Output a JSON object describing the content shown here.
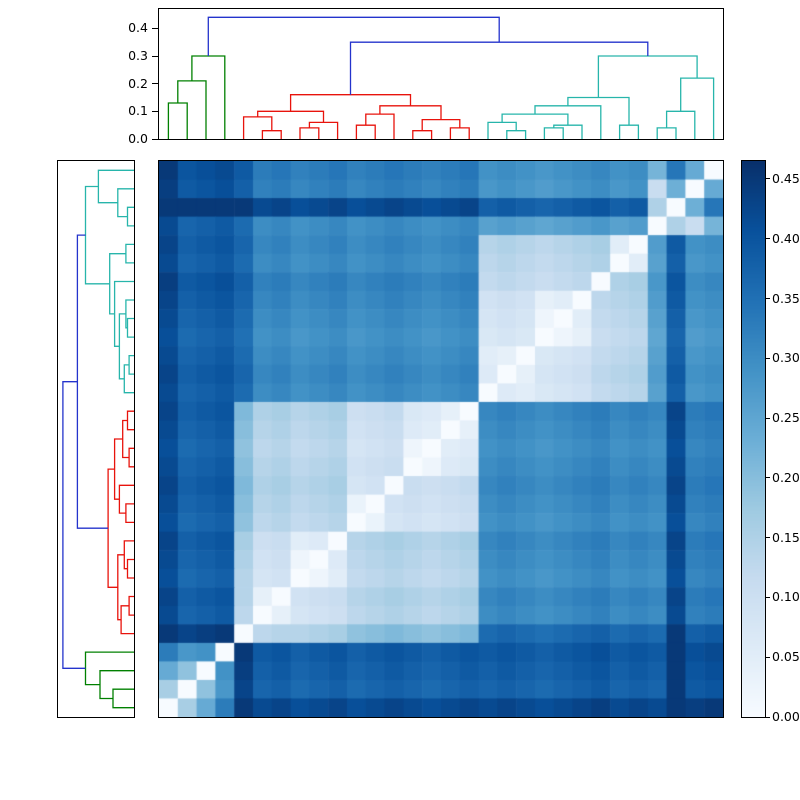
{
  "colors": {
    "dendrogram_blue": "#2433cc",
    "dendrogram_green": "#008000",
    "dendrogram_red": "#e8130c",
    "dendrogram_teal": "#27b5ab",
    "frame": "#000000",
    "background": "#ffffff"
  },
  "chart_data": {
    "type": "heatmap",
    "n_rows": 30,
    "n_cols": 30,
    "vmin": 0.0,
    "vmax": 0.465,
    "colormap": "Blues",
    "colormap_stops": [
      [
        0.0,
        247,
        251,
        255
      ],
      [
        0.125,
        222,
        235,
        247
      ],
      [
        0.25,
        198,
        219,
        239
      ],
      [
        0.375,
        158,
        202,
        225
      ],
      [
        0.5,
        107,
        174,
        214
      ],
      [
        0.625,
        66,
        146,
        198
      ],
      [
        0.75,
        33,
        113,
        181
      ],
      [
        0.875,
        8,
        81,
        156
      ],
      [
        1.0,
        8,
        48,
        107
      ]
    ],
    "matrix": [
      [
        0.45,
        0.4,
        0.41,
        0.42,
        0.39,
        0.33,
        0.34,
        0.32,
        0.33,
        0.34,
        0.32,
        0.33,
        0.34,
        0.33,
        0.32,
        0.33,
        0.34,
        0.29,
        0.3,
        0.29,
        0.28,
        0.29,
        0.3,
        0.31,
        0.29,
        0.3,
        0.22,
        0.34,
        0.24,
        0.0
      ],
      [
        0.44,
        0.39,
        0.4,
        0.41,
        0.38,
        0.32,
        0.33,
        0.31,
        0.32,
        0.33,
        0.31,
        0.32,
        0.33,
        0.32,
        0.31,
        0.32,
        0.33,
        0.28,
        0.29,
        0.28,
        0.27,
        0.28,
        0.29,
        0.3,
        0.28,
        0.29,
        0.11,
        0.23,
        0.0,
        0.24
      ],
      [
        0.45,
        0.45,
        0.45,
        0.45,
        0.45,
        0.42,
        0.43,
        0.41,
        0.42,
        0.43,
        0.41,
        0.42,
        0.43,
        0.42,
        0.41,
        0.42,
        0.43,
        0.38,
        0.39,
        0.38,
        0.37,
        0.38,
        0.39,
        0.4,
        0.38,
        0.39,
        0.15,
        0.0,
        0.23,
        0.34
      ],
      [
        0.42,
        0.37,
        0.38,
        0.39,
        0.36,
        0.3,
        0.31,
        0.29,
        0.3,
        0.31,
        0.29,
        0.3,
        0.31,
        0.3,
        0.29,
        0.3,
        0.31,
        0.26,
        0.27,
        0.26,
        0.25,
        0.26,
        0.27,
        0.28,
        0.26,
        0.27,
        0.0,
        0.15,
        0.11,
        0.22
      ],
      [
        0.43,
        0.38,
        0.39,
        0.4,
        0.37,
        0.31,
        0.32,
        0.3,
        0.31,
        0.32,
        0.3,
        0.31,
        0.32,
        0.31,
        0.3,
        0.31,
        0.32,
        0.14,
        0.15,
        0.14,
        0.13,
        0.14,
        0.15,
        0.16,
        0.05,
        0.0,
        0.27,
        0.39,
        0.29,
        0.3
      ],
      [
        0.42,
        0.37,
        0.38,
        0.39,
        0.36,
        0.3,
        0.31,
        0.29,
        0.3,
        0.31,
        0.29,
        0.3,
        0.31,
        0.3,
        0.29,
        0.3,
        0.31,
        0.13,
        0.14,
        0.13,
        0.12,
        0.13,
        0.14,
        0.15,
        0.0,
        0.05,
        0.26,
        0.38,
        0.28,
        0.29
      ],
      [
        0.44,
        0.39,
        0.4,
        0.41,
        0.38,
        0.32,
        0.33,
        0.31,
        0.32,
        0.33,
        0.31,
        0.32,
        0.33,
        0.32,
        0.31,
        0.32,
        0.33,
        0.12,
        0.13,
        0.12,
        0.11,
        0.12,
        0.13,
        0.0,
        0.15,
        0.16,
        0.28,
        0.4,
        0.3,
        0.31
      ],
      [
        0.43,
        0.38,
        0.39,
        0.4,
        0.37,
        0.31,
        0.32,
        0.3,
        0.31,
        0.32,
        0.3,
        0.31,
        0.32,
        0.31,
        0.3,
        0.31,
        0.32,
        0.09,
        0.1,
        0.09,
        0.04,
        0.05,
        0.0,
        0.13,
        0.14,
        0.15,
        0.27,
        0.39,
        0.29,
        0.3
      ],
      [
        0.42,
        0.37,
        0.38,
        0.39,
        0.36,
        0.3,
        0.31,
        0.29,
        0.3,
        0.31,
        0.29,
        0.3,
        0.31,
        0.3,
        0.29,
        0.3,
        0.31,
        0.08,
        0.09,
        0.08,
        0.02,
        0.0,
        0.05,
        0.12,
        0.13,
        0.14,
        0.26,
        0.38,
        0.28,
        0.29
      ],
      [
        0.41,
        0.36,
        0.37,
        0.38,
        0.35,
        0.29,
        0.3,
        0.28,
        0.29,
        0.3,
        0.28,
        0.29,
        0.3,
        0.29,
        0.28,
        0.29,
        0.3,
        0.07,
        0.08,
        0.07,
        0.0,
        0.02,
        0.04,
        0.11,
        0.12,
        0.13,
        0.25,
        0.37,
        0.27,
        0.28
      ],
      [
        0.42,
        0.37,
        0.38,
        0.39,
        0.36,
        0.3,
        0.31,
        0.29,
        0.3,
        0.31,
        0.29,
        0.3,
        0.31,
        0.3,
        0.29,
        0.3,
        0.31,
        0.05,
        0.04,
        0.0,
        0.07,
        0.08,
        0.09,
        0.12,
        0.13,
        0.14,
        0.26,
        0.38,
        0.28,
        0.29
      ],
      [
        0.43,
        0.38,
        0.39,
        0.4,
        0.37,
        0.31,
        0.32,
        0.3,
        0.31,
        0.32,
        0.3,
        0.31,
        0.32,
        0.31,
        0.3,
        0.31,
        0.32,
        0.06,
        0.0,
        0.04,
        0.08,
        0.09,
        0.1,
        0.13,
        0.14,
        0.15,
        0.27,
        0.39,
        0.29,
        0.3
      ],
      [
        0.42,
        0.37,
        0.38,
        0.39,
        0.36,
        0.3,
        0.31,
        0.29,
        0.3,
        0.31,
        0.29,
        0.3,
        0.31,
        0.3,
        0.29,
        0.3,
        0.31,
        0.0,
        0.06,
        0.05,
        0.07,
        0.08,
        0.09,
        0.12,
        0.13,
        0.14,
        0.26,
        0.38,
        0.28,
        0.29
      ],
      [
        0.43,
        0.38,
        0.39,
        0.4,
        0.21,
        0.15,
        0.16,
        0.14,
        0.15,
        0.16,
        0.1,
        0.11,
        0.12,
        0.07,
        0.06,
        0.04,
        0.0,
        0.31,
        0.32,
        0.31,
        0.3,
        0.31,
        0.32,
        0.33,
        0.31,
        0.32,
        0.31,
        0.43,
        0.33,
        0.34
      ],
      [
        0.42,
        0.37,
        0.38,
        0.39,
        0.2,
        0.14,
        0.15,
        0.13,
        0.14,
        0.15,
        0.09,
        0.1,
        0.11,
        0.06,
        0.05,
        0.0,
        0.04,
        0.3,
        0.31,
        0.3,
        0.29,
        0.3,
        0.31,
        0.32,
        0.3,
        0.31,
        0.3,
        0.42,
        0.32,
        0.33
      ],
      [
        0.41,
        0.36,
        0.37,
        0.38,
        0.19,
        0.13,
        0.14,
        0.12,
        0.13,
        0.14,
        0.08,
        0.09,
        0.1,
        0.02,
        0.0,
        0.05,
        0.06,
        0.29,
        0.3,
        0.29,
        0.28,
        0.29,
        0.3,
        0.31,
        0.29,
        0.3,
        0.29,
        0.41,
        0.31,
        0.32
      ],
      [
        0.42,
        0.37,
        0.38,
        0.39,
        0.2,
        0.14,
        0.15,
        0.13,
        0.14,
        0.15,
        0.09,
        0.1,
        0.11,
        0.0,
        0.02,
        0.06,
        0.07,
        0.3,
        0.31,
        0.3,
        0.29,
        0.3,
        0.31,
        0.32,
        0.3,
        0.31,
        0.3,
        0.42,
        0.32,
        0.33
      ],
      [
        0.43,
        0.38,
        0.39,
        0.4,
        0.21,
        0.15,
        0.16,
        0.14,
        0.15,
        0.16,
        0.08,
        0.09,
        0.0,
        0.11,
        0.1,
        0.11,
        0.12,
        0.31,
        0.32,
        0.31,
        0.3,
        0.31,
        0.32,
        0.33,
        0.31,
        0.32,
        0.31,
        0.43,
        0.33,
        0.34
      ],
      [
        0.42,
        0.37,
        0.38,
        0.39,
        0.2,
        0.14,
        0.15,
        0.13,
        0.14,
        0.15,
        0.03,
        0.0,
        0.09,
        0.1,
        0.09,
        0.1,
        0.11,
        0.3,
        0.31,
        0.3,
        0.29,
        0.3,
        0.31,
        0.32,
        0.3,
        0.31,
        0.3,
        0.42,
        0.32,
        0.33
      ],
      [
        0.41,
        0.36,
        0.37,
        0.38,
        0.19,
        0.13,
        0.14,
        0.12,
        0.13,
        0.14,
        0.0,
        0.03,
        0.08,
        0.09,
        0.08,
        0.09,
        0.1,
        0.29,
        0.3,
        0.29,
        0.28,
        0.29,
        0.3,
        0.31,
        0.29,
        0.3,
        0.29,
        0.41,
        0.31,
        0.32
      ],
      [
        0.43,
        0.38,
        0.39,
        0.4,
        0.16,
        0.1,
        0.11,
        0.05,
        0.06,
        0.0,
        0.14,
        0.15,
        0.16,
        0.15,
        0.14,
        0.15,
        0.16,
        0.31,
        0.32,
        0.31,
        0.3,
        0.31,
        0.32,
        0.33,
        0.31,
        0.32,
        0.31,
        0.43,
        0.33,
        0.34
      ],
      [
        0.42,
        0.37,
        0.38,
        0.39,
        0.15,
        0.09,
        0.1,
        0.02,
        0.0,
        0.06,
        0.13,
        0.14,
        0.15,
        0.14,
        0.13,
        0.14,
        0.15,
        0.3,
        0.31,
        0.3,
        0.29,
        0.3,
        0.31,
        0.32,
        0.3,
        0.31,
        0.3,
        0.42,
        0.32,
        0.33
      ],
      [
        0.41,
        0.36,
        0.37,
        0.38,
        0.14,
        0.08,
        0.09,
        0.0,
        0.02,
        0.05,
        0.12,
        0.13,
        0.14,
        0.13,
        0.12,
        0.13,
        0.14,
        0.29,
        0.3,
        0.29,
        0.28,
        0.29,
        0.3,
        0.31,
        0.29,
        0.3,
        0.29,
        0.41,
        0.31,
        0.32
      ],
      [
        0.43,
        0.38,
        0.39,
        0.4,
        0.14,
        0.04,
        0.0,
        0.09,
        0.1,
        0.11,
        0.14,
        0.15,
        0.16,
        0.15,
        0.14,
        0.15,
        0.16,
        0.31,
        0.32,
        0.31,
        0.3,
        0.31,
        0.32,
        0.33,
        0.31,
        0.32,
        0.31,
        0.43,
        0.33,
        0.34
      ],
      [
        0.42,
        0.37,
        0.38,
        0.39,
        0.13,
        0.0,
        0.04,
        0.08,
        0.09,
        0.1,
        0.13,
        0.14,
        0.15,
        0.14,
        0.13,
        0.14,
        0.15,
        0.3,
        0.31,
        0.3,
        0.29,
        0.3,
        0.31,
        0.32,
        0.3,
        0.31,
        0.3,
        0.42,
        0.32,
        0.33
      ],
      [
        0.45,
        0.43,
        0.44,
        0.45,
        0.0,
        0.13,
        0.14,
        0.14,
        0.15,
        0.16,
        0.19,
        0.2,
        0.21,
        0.2,
        0.19,
        0.2,
        0.21,
        0.36,
        0.37,
        0.36,
        0.35,
        0.36,
        0.37,
        0.38,
        0.36,
        0.37,
        0.36,
        0.45,
        0.38,
        0.39
      ],
      [
        0.33,
        0.28,
        0.29,
        0.0,
        0.45,
        0.39,
        0.4,
        0.38,
        0.39,
        0.4,
        0.38,
        0.39,
        0.4,
        0.39,
        0.38,
        0.39,
        0.4,
        0.39,
        0.4,
        0.39,
        0.38,
        0.39,
        0.4,
        0.41,
        0.39,
        0.4,
        0.39,
        0.45,
        0.41,
        0.42
      ],
      [
        0.24,
        0.19,
        0.0,
        0.29,
        0.44,
        0.38,
        0.39,
        0.37,
        0.38,
        0.39,
        0.37,
        0.38,
        0.39,
        0.38,
        0.37,
        0.38,
        0.39,
        0.38,
        0.39,
        0.38,
        0.37,
        0.38,
        0.39,
        0.4,
        0.38,
        0.39,
        0.38,
        0.45,
        0.4,
        0.41
      ],
      [
        0.16,
        0.0,
        0.19,
        0.28,
        0.43,
        0.37,
        0.38,
        0.36,
        0.37,
        0.38,
        0.36,
        0.37,
        0.38,
        0.37,
        0.36,
        0.37,
        0.38,
        0.37,
        0.38,
        0.37,
        0.36,
        0.37,
        0.38,
        0.39,
        0.37,
        0.38,
        0.37,
        0.45,
        0.39,
        0.4
      ],
      [
        0.0,
        0.16,
        0.24,
        0.33,
        0.45,
        0.42,
        0.43,
        0.41,
        0.42,
        0.43,
        0.41,
        0.42,
        0.43,
        0.42,
        0.41,
        0.42,
        0.43,
        0.42,
        0.43,
        0.42,
        0.41,
        0.42,
        0.43,
        0.44,
        0.42,
        0.43,
        0.42,
        0.45,
        0.44,
        0.45
      ]
    ],
    "column_dendrogram": {
      "axis_tick_labels": [
        "0.0",
        "0.1",
        "0.2",
        "0.3",
        "0.4"
      ],
      "axis_tick_values": [
        0.0,
        0.1,
        0.2,
        0.3,
        0.4
      ],
      "height_max": 0.47,
      "links": [
        [
          0.5,
          0,
          1.5,
          0,
          0.13,
          "green"
        ],
        [
          1.0,
          0.13,
          2.5,
          0,
          0.21,
          "green"
        ],
        [
          1.75,
          0.21,
          3.5,
          0,
          0.3,
          "green"
        ],
        [
          5.5,
          0,
          6.5,
          0,
          0.03,
          "red"
        ],
        [
          4.5,
          0,
          6.0,
          0.03,
          0.08,
          "red"
        ],
        [
          7.5,
          0,
          8.5,
          0,
          0.04,
          "red"
        ],
        [
          8.0,
          0.04,
          9.5,
          0,
          0.06,
          "red"
        ],
        [
          5.25,
          0.08,
          8.75,
          0.06,
          0.1,
          "red"
        ],
        [
          10.5,
          0,
          11.5,
          0,
          0.05,
          "red"
        ],
        [
          11.0,
          0.05,
          12.5,
          0,
          0.09,
          "red"
        ],
        [
          13.5,
          0,
          14.5,
          0,
          0.03,
          "red"
        ],
        [
          15.5,
          0,
          16.5,
          0,
          0.04,
          "red"
        ],
        [
          14.0,
          0.03,
          16.0,
          0.04,
          0.07,
          "red"
        ],
        [
          11.75,
          0.09,
          15.0,
          0.07,
          0.12,
          "red"
        ],
        [
          7.0,
          0.1,
          13.375,
          0.12,
          0.16,
          "red"
        ],
        [
          18.5,
          0,
          19.5,
          0,
          0.03,
          "teal"
        ],
        [
          17.5,
          0,
          19.0,
          0.03,
          0.06,
          "teal"
        ],
        [
          20.5,
          0,
          21.5,
          0,
          0.04,
          "teal"
        ],
        [
          21.0,
          0.04,
          22.5,
          0,
          0.05,
          "teal"
        ],
        [
          18.25,
          0.06,
          21.75,
          0.05,
          0.09,
          "teal"
        ],
        [
          20.0,
          0.09,
          23.5,
          0,
          0.12,
          "teal"
        ],
        [
          24.5,
          0,
          25.5,
          0,
          0.05,
          "teal"
        ],
        [
          21.75,
          0.12,
          25.0,
          0.05,
          0.15,
          "teal"
        ],
        [
          26.5,
          0,
          27.5,
          0,
          0.04,
          "teal"
        ],
        [
          27.0,
          0.04,
          28.5,
          0,
          0.1,
          "teal"
        ],
        [
          27.75,
          0.1,
          29.5,
          0,
          0.22,
          "teal"
        ],
        [
          23.375,
          0.15,
          28.625,
          0.22,
          0.3,
          "teal"
        ],
        [
          10.1875,
          0.16,
          26.0,
          0.3,
          0.35,
          "blue"
        ],
        [
          2.625,
          0.3,
          18.0938,
          0.35,
          0.44,
          "blue"
        ]
      ]
    },
    "row_dendrogram": {
      "same_tree_as_columns": true,
      "leaf_order_reversed": true,
      "height_max": 0.47
    },
    "colorbar": {
      "tick_labels": [
        "0.00",
        "0.05",
        "0.10",
        "0.15",
        "0.20",
        "0.25",
        "0.30",
        "0.35",
        "0.40",
        "0.45"
      ],
      "tick_values": [
        0.0,
        0.05,
        0.1,
        0.15,
        0.2,
        0.25,
        0.3,
        0.35,
        0.4,
        0.45
      ]
    },
    "column_clusters": {
      "green": [
        0,
        3
      ],
      "red": [
        4,
        16
      ],
      "teal": [
        17,
        29
      ]
    },
    "row_clusters_top_to_bottom": {
      "teal": [
        0,
        12
      ],
      "red": [
        13,
        25
      ],
      "green": [
        26,
        29
      ]
    }
  }
}
